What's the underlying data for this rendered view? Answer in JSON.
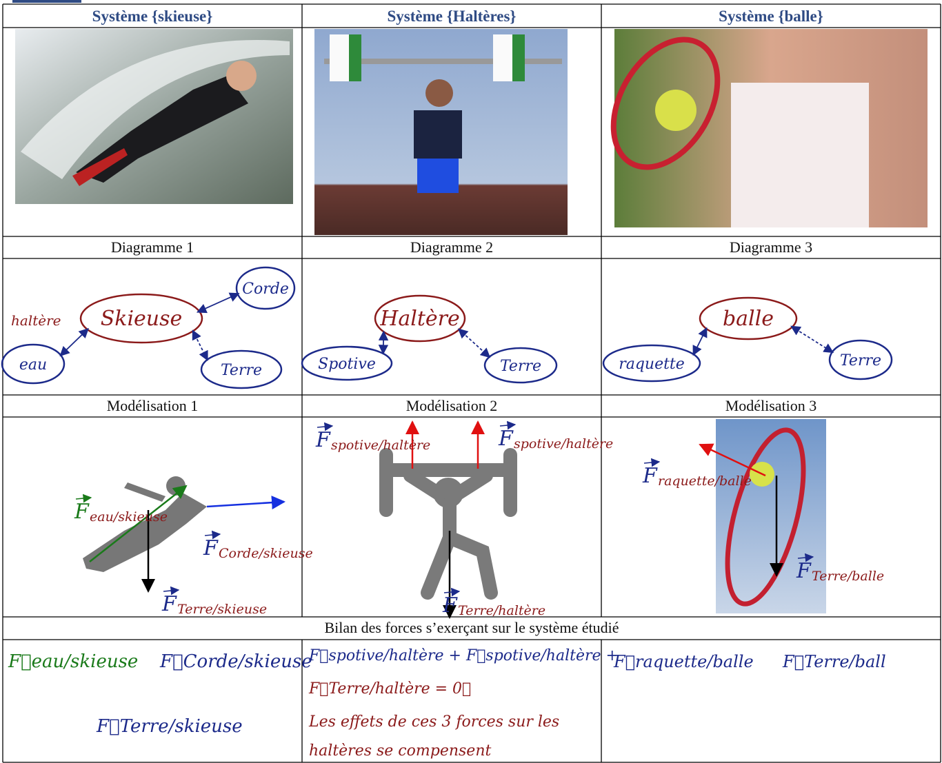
{
  "columns": [
    {
      "header": "Système {skieuse}",
      "diagram_title": "Diagramme 1",
      "diagram": {
        "system": "Skieuse",
        "actors": [
          "Corde",
          "eau",
          "Terre"
        ],
        "note": "haltère"
      },
      "model_title": "Modélisation 1",
      "forces": [
        {
          "symbol": "F",
          "label": "eau/skieuse"
        },
        {
          "symbol": "F",
          "label": "Corde/skieuse"
        },
        {
          "symbol": "F",
          "label": "Terre/skieuse"
        }
      ],
      "bilan": [
        "F⃗eau/skieuse",
        "F⃗Corde/skieuse",
        "F⃗Terre/skieuse"
      ]
    },
    {
      "header": "Système {Haltères}",
      "diagram_title": "Diagramme 2",
      "diagram": {
        "system": "Haltère",
        "actors": [
          "Spotive",
          "Terre"
        ]
      },
      "model_title": "Modélisation 2",
      "forces": [
        {
          "symbol": "F",
          "label": "spotive/haltère"
        },
        {
          "symbol": "F",
          "label": "spotive/haltère"
        },
        {
          "symbol": "F",
          "label": "Terre/haltère"
        }
      ],
      "bilan": [
        "F⃗spotive/haltère + F⃗spotive/haltère +",
        "F⃗Terre/haltère = 0⃗",
        "Les effets de ces 3 forces sur les",
        "haltères se compensent"
      ]
    },
    {
      "header": "Système {balle}",
      "diagram_title": "Diagramme 3",
      "diagram": {
        "system": "balle",
        "actors": [
          "raquette",
          "Terre"
        ]
      },
      "model_title": "Modélisation 3",
      "forces": [
        {
          "symbol": "F",
          "label": "raquette/balle"
        },
        {
          "symbol": "F",
          "label": "Terre/balle"
        }
      ],
      "bilan": [
        "F⃗raquette/balle",
        "F⃗Terre/ball"
      ]
    }
  ],
  "summary_title": "Bilan des forces s’exerçant sur le système étudié"
}
